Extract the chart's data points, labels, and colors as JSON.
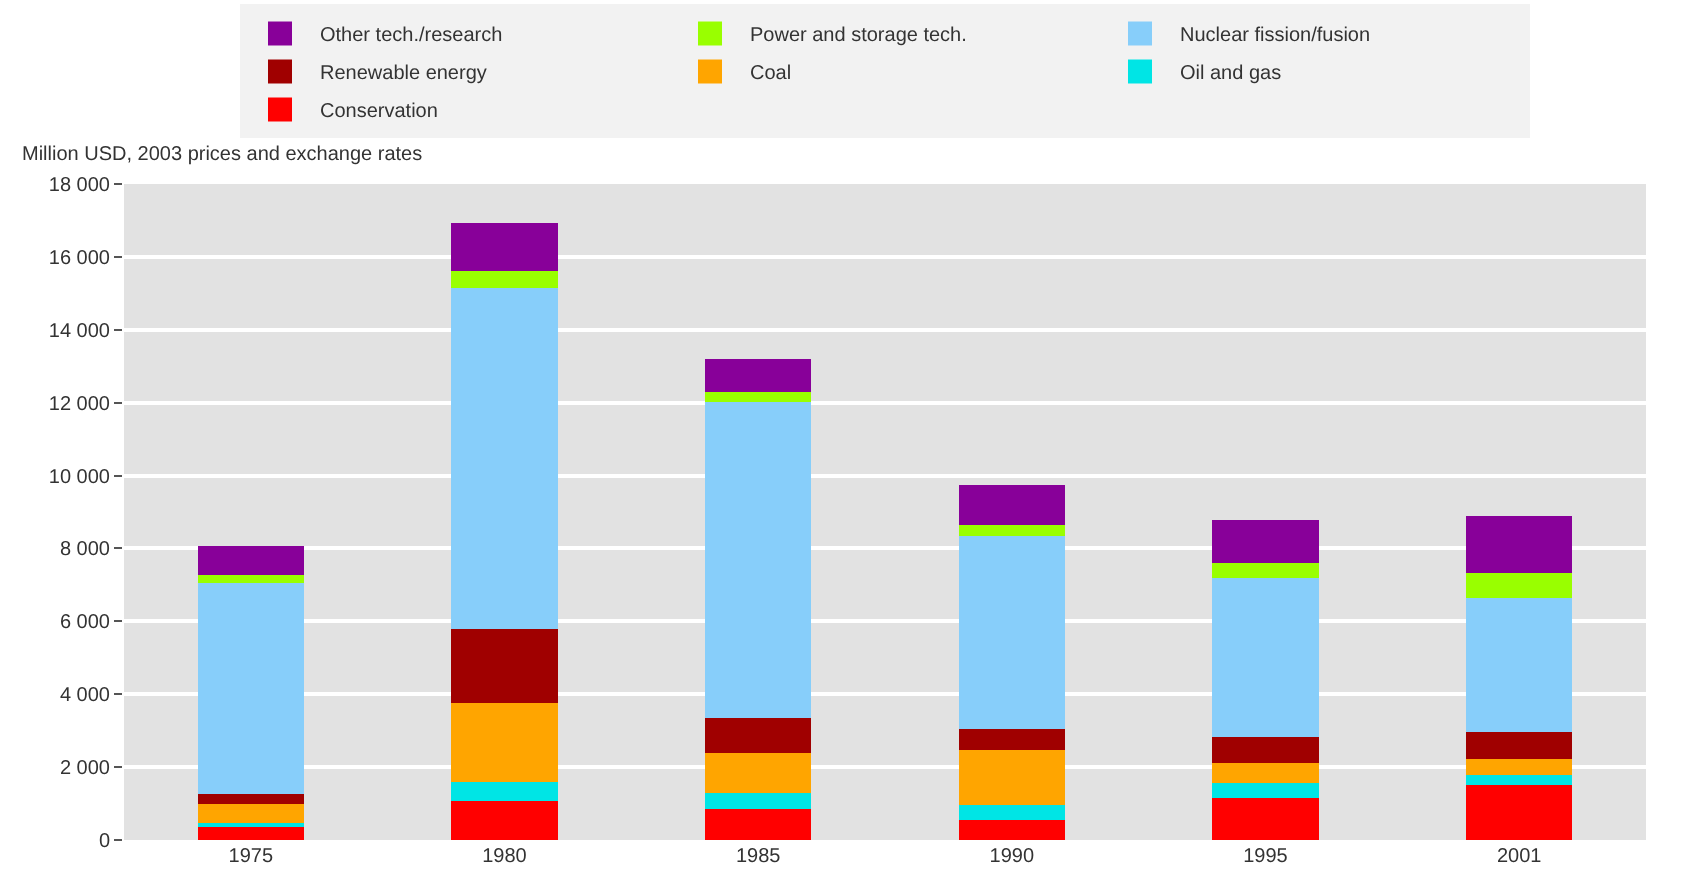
{
  "chart_data": {
    "type": "bar",
    "stacked": true,
    "ylabel": "Million USD, 2003 prices and exchange rates",
    "categories": [
      "1975",
      "1980",
      "1985",
      "1990",
      "1995",
      "2001"
    ],
    "series": [
      {
        "name": "Conservation",
        "color": "#ff0000",
        "values": [
          350,
          1070,
          840,
          540,
          1160,
          1500
        ]
      },
      {
        "name": "Oil and gas",
        "color": "#00e5e5",
        "values": [
          130,
          530,
          460,
          420,
          410,
          290
        ]
      },
      {
        "name": "Coal",
        "color": "#ffa500",
        "values": [
          500,
          2150,
          1080,
          1500,
          540,
          440
        ]
      },
      {
        "name": "Renewable energy",
        "color": "#a00000",
        "values": [
          270,
          2050,
          980,
          580,
          710,
          720
        ]
      },
      {
        "name": "Nuclear fission/fusion",
        "color": "#87cefa",
        "values": [
          5800,
          9340,
          8660,
          5300,
          4380,
          3690
        ]
      },
      {
        "name": "Power and storage tech.",
        "color": "#99ff00",
        "values": [
          220,
          480,
          270,
          290,
          400,
          680
        ]
      },
      {
        "name": "Other tech./research",
        "color": "#880099",
        "values": [
          800,
          1300,
          910,
          1120,
          1190,
          1560
        ]
      }
    ],
    "ylim": [
      0,
      18000
    ],
    "yticks": [
      0,
      {
        "value": 2000,
        "label": "2 000"
      },
      {
        "value": 4000,
        "label": "4 000"
      },
      {
        "value": 6000,
        "label": "6 000"
      },
      {
        "value": 8000,
        "label": "8 000"
      },
      {
        "value": 10000,
        "label": "10 000"
      },
      {
        "value": 12000,
        "label": "12 000"
      },
      {
        "value": 14000,
        "label": "14 000"
      },
      {
        "value": 16000,
        "label": "16 000"
      },
      {
        "value": 18000,
        "label": "18 000"
      }
    ],
    "grid": "y",
    "legend": "top"
  }
}
